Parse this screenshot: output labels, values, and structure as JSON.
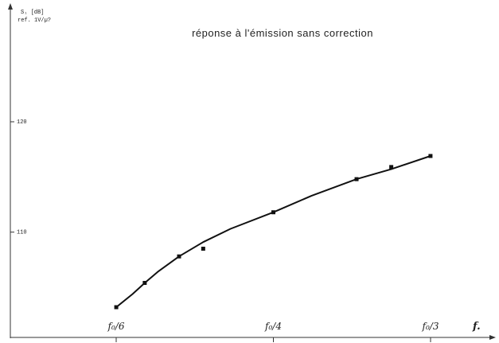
{
  "chart_data": {
    "type": "line",
    "title": "réponse à l'émission sans correction",
    "ylabel": [
      "S₁ [dB]",
      "ref. 1V/µ?"
    ],
    "xlabel": "f.",
    "x_ticks": [
      "f₀/6",
      "f₀/4",
      "f₀/3"
    ],
    "y_ticks": [
      120,
      110
    ],
    "ylim": [
      102,
      128
    ],
    "xlim": [
      0.145,
      0.345
    ],
    "x_scale": "reciprocal",
    "grid": false,
    "series": [
      {
        "values_x": [
          0.1667,
          0.1754,
          0.1818,
          0.1887,
          0.2,
          0.2128,
          0.2273,
          0.25,
          0.2703,
          0.2941,
          0.3125,
          0.3333
        ],
        "values_y": [
          103.2,
          104.4,
          105.4,
          106.4,
          107.8,
          109.1,
          110.3,
          111.8,
          113.3,
          114.8,
          115.7,
          116.9
        ]
      }
    ],
    "markers_x": [
      0.1667,
      0.1818,
      0.2,
      0.2128,
      0.25,
      0.2941,
      0.3125,
      0.3333
    ],
    "markers_y": [
      103.2,
      105.4,
      107.8,
      108.5,
      111.8,
      114.8,
      115.9,
      116.9
    ]
  }
}
